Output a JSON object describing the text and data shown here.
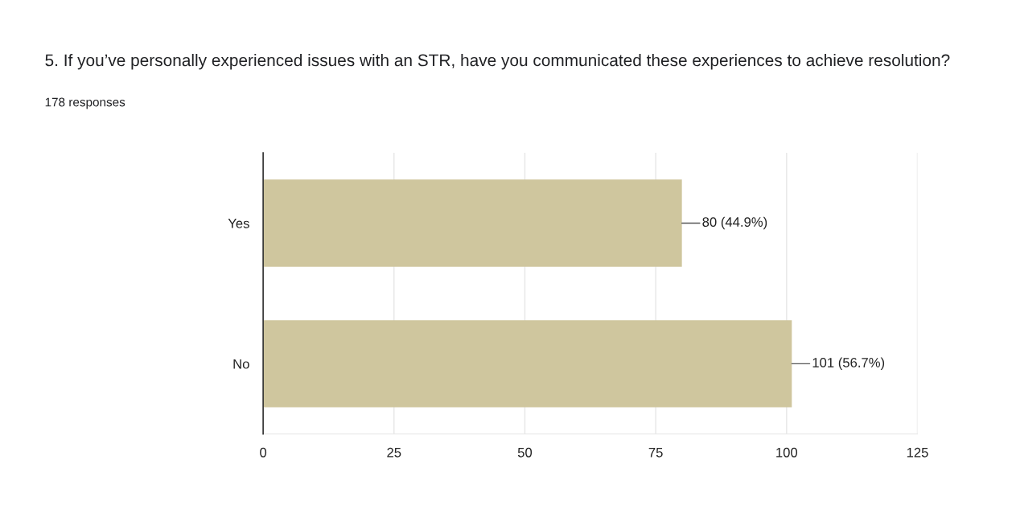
{
  "chart_data": {
    "type": "bar",
    "orientation": "horizontal",
    "title": "5. If you’ve personally experienced issues with an STR, have you communicated these experiences to achieve resolution?",
    "subtitle": "178 responses",
    "categories": [
      "Yes",
      "No"
    ],
    "values": [
      80,
      101
    ],
    "value_labels": [
      "80 (44.9%)",
      "101 (56.7%)"
    ],
    "color": "#cfc69e",
    "xlim": [
      0,
      125
    ],
    "xticks": [
      0,
      25,
      50,
      75,
      100,
      125
    ],
    "grid": "x",
    "legend": false
  }
}
